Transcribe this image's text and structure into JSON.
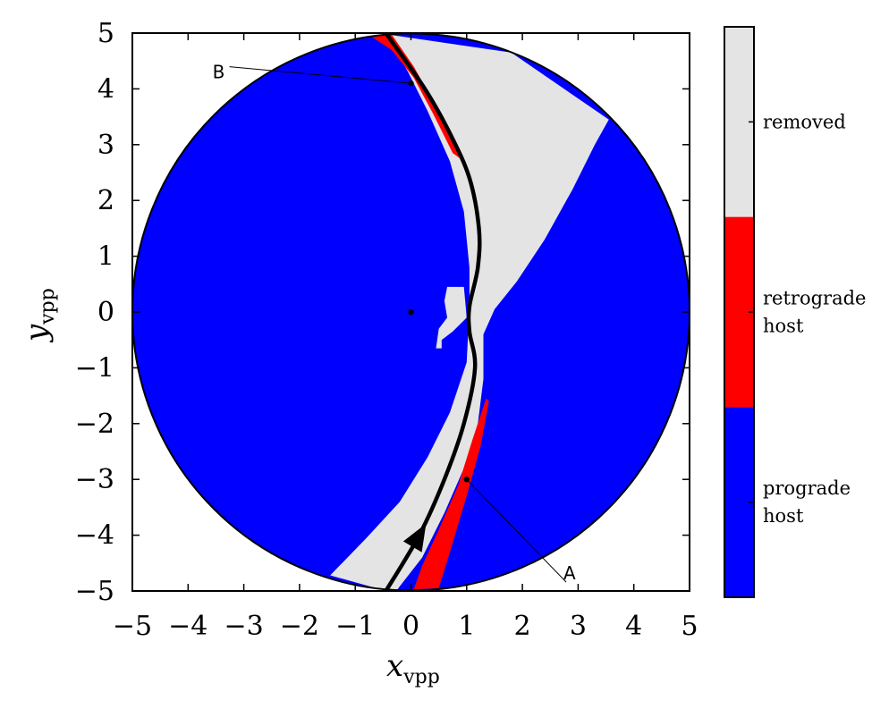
{
  "chart_data": {
    "type": "heatmap",
    "xlabel": {
      "main": "x",
      "sub": "vpp"
    },
    "ylabel": {
      "main": "y",
      "sub": "vpp"
    },
    "xlim": [
      -5,
      5
    ],
    "ylim": [
      -5,
      5
    ],
    "x_ticks": [
      -5,
      -4,
      -3,
      -2,
      -1,
      0,
      1,
      2,
      3,
      4,
      5
    ],
    "y_ticks": [
      -5,
      -4,
      -3,
      -2,
      -1,
      0,
      1,
      2,
      3,
      4,
      5
    ],
    "disk_radius": 5,
    "categories": [
      {
        "name": "removed",
        "color": "#e4e4e4"
      },
      {
        "name": "retrograde host",
        "color": "#ff0000"
      },
      {
        "name": "prograde host",
        "color": "#0000ff"
      }
    ],
    "colorbar_labels": [
      [
        "removed"
      ],
      [
        "retrograde",
        "host"
      ],
      [
        "prograde",
        "host"
      ]
    ],
    "regions": {
      "removed": [
        [
          [
            -0.45,
            4.98
          ],
          [
            1.8,
            4.65
          ],
          [
            3.55,
            3.45
          ],
          [
            3.3,
            3.0
          ],
          [
            2.9,
            2.2
          ],
          [
            2.4,
            1.3
          ],
          [
            1.9,
            0.55
          ],
          [
            1.5,
            0.05
          ],
          [
            1.3,
            -0.4
          ],
          [
            1.3,
            -1.2
          ],
          [
            1.2,
            -2.0
          ],
          [
            0.95,
            -2.8
          ],
          [
            0.6,
            -3.6
          ],
          [
            0.2,
            -4.4
          ],
          [
            -0.25,
            -4.98
          ],
          [
            -0.55,
            -4.97
          ],
          [
            -1.45,
            -4.72
          ],
          [
            -0.8,
            -4.05
          ],
          [
            -0.2,
            -3.4
          ],
          [
            0.3,
            -2.6
          ],
          [
            0.7,
            -1.8
          ],
          [
            1.0,
            -0.9
          ],
          [
            1.05,
            0.1
          ],
          [
            1.05,
            0.8
          ],
          [
            0.95,
            1.8
          ],
          [
            0.7,
            2.7
          ],
          [
            0.3,
            3.6
          ],
          [
            -0.05,
            4.3
          ]
        ],
        [
          [
            0.65,
            0.45
          ],
          [
            0.95,
            0.45
          ],
          [
            1.0,
            -0.1
          ],
          [
            0.75,
            -0.35
          ],
          [
            0.55,
            -0.5
          ],
          [
            0.55,
            -0.65
          ],
          [
            0.45,
            -0.65
          ],
          [
            0.5,
            -0.3
          ],
          [
            0.65,
            -0.1
          ],
          [
            0.6,
            0.2
          ]
        ]
      ],
      "retrograde": [
        [
          [
            -0.7,
            4.93
          ],
          [
            -0.35,
            4.98
          ],
          [
            0.05,
            4.4
          ],
          [
            0.5,
            3.6
          ],
          [
            0.95,
            2.7
          ],
          [
            0.75,
            2.85
          ],
          [
            0.4,
            3.55
          ],
          [
            0.05,
            4.2
          ],
          [
            -0.35,
            4.7
          ]
        ],
        [
          [
            0.05,
            -4.97
          ],
          [
            0.5,
            -4.95
          ],
          [
            0.7,
            -4.3
          ],
          [
            1.0,
            -3.3
          ],
          [
            1.25,
            -2.4
          ],
          [
            1.4,
            -1.6
          ],
          [
            1.35,
            -1.55
          ],
          [
            1.1,
            -2.3
          ],
          [
            0.85,
            -3.1
          ],
          [
            0.5,
            -3.9
          ],
          [
            0.2,
            -4.55
          ]
        ]
      ]
    },
    "trajectory": [
      [
        -0.45,
        -5.0
      ],
      [
        0.15,
        -4.0
      ],
      [
        0.6,
        -3.0
      ],
      [
        0.95,
        -2.0
      ],
      [
        1.15,
        -1.0
      ],
      [
        1.05,
        -0.35
      ],
      [
        1.05,
        0.1
      ],
      [
        1.2,
        0.8
      ],
      [
        1.22,
        1.5
      ],
      [
        1.05,
        2.4
      ],
      [
        0.7,
        3.2
      ],
      [
        0.25,
        4.0
      ],
      [
        -0.45,
        5.0
      ]
    ],
    "trajectory_arrow": {
      "at": [
        0.15,
        -4.0
      ],
      "direction": [
        0.5,
        0.85
      ]
    },
    "points": [
      {
        "label": "",
        "x": 0,
        "y": 0
      },
      {
        "label": "A",
        "x": 1.0,
        "y": -3.0,
        "label_pos": [
          2.85,
          -4.68
        ]
      },
      {
        "label": "B",
        "x": 0.0,
        "y": 4.1,
        "label_pos": [
          -3.45,
          4.3
        ]
      }
    ],
    "grid": false,
    "legend_placement": "right (colorbar)"
  }
}
